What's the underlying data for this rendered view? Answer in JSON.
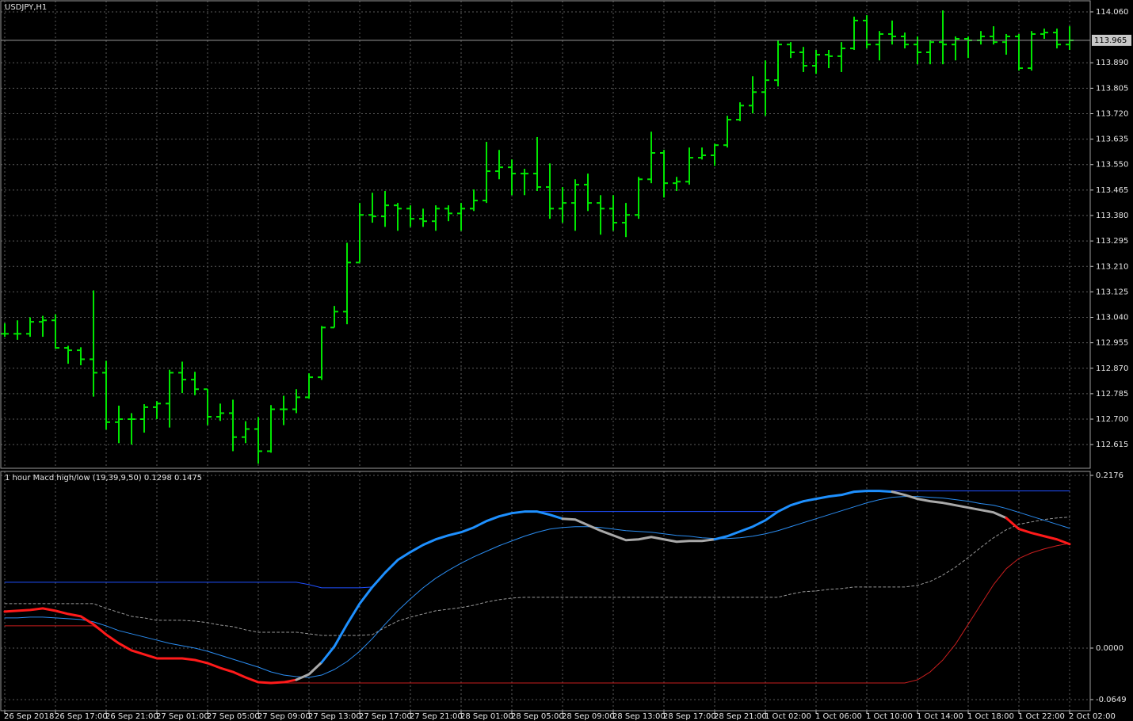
{
  "chart_data": [
    {
      "type": "ohlc",
      "title": "USDJPY,H1",
      "color": "#00e600",
      "grid": true,
      "categories": [
        "26 Sep 2018",
        null,
        null,
        null,
        "26 Sep 17:00",
        null,
        null,
        null,
        "26 Sep 21:00",
        null,
        null,
        null,
        "27 Sep 01:00",
        null,
        null,
        null,
        "27 Sep 05:00",
        null,
        null,
        null,
        "27 Sep 09:00",
        null,
        null,
        null,
        "27 Sep 13:00",
        null,
        null,
        null,
        "27 Sep 17:00",
        null,
        null,
        null,
        "27 Sep 21:00",
        null,
        null,
        null,
        "28 Sep 01:00",
        null,
        null,
        null,
        "28 Sep 05:00",
        null,
        null,
        null,
        "28 Sep 09:00",
        null,
        null,
        null,
        "28 Sep 13:00",
        null,
        null,
        null,
        "28 Sep 17:00",
        null,
        null,
        null,
        "28 Sep 21:00",
        null,
        null,
        null,
        "1 Oct 02:00",
        null,
        null,
        null,
        "1 Oct 06:00",
        null,
        null,
        null,
        "1 Oct 10:00",
        null,
        null,
        null,
        "1 Oct 14:00",
        null,
        null,
        null,
        "1 Oct 18:00",
        null,
        null,
        null,
        "1 Oct 22:00",
        null,
        null,
        null,
        "2 Oct 02:00"
      ],
      "open": [
        112.985,
        112.985,
        112.985,
        113.025,
        113.03,
        112.938,
        112.93,
        112.9,
        112.855,
        112.69,
        112.7,
        112.7,
        112.74,
        112.752,
        112.855,
        112.832,
        112.8,
        112.708,
        112.72,
        112.64,
        112.667,
        112.593,
        112.733,
        112.733,
        112.773,
        112.84,
        113.006,
        113.059,
        113.223,
        113.382,
        113.377,
        113.414,
        113.403,
        113.369,
        113.361,
        113.403,
        113.387,
        113.403,
        113.43,
        113.528,
        113.541,
        113.52,
        113.52,
        113.475,
        113.403,
        113.422,
        113.483,
        113.422,
        113.403,
        113.356,
        113.382,
        113.501,
        113.589,
        113.488,
        113.493,
        113.573,
        113.581,
        113.615,
        113.7,
        113.747,
        113.792,
        113.832,
        113.951,
        113.925,
        113.88,
        113.917,
        113.912,
        113.938,
        114.031,
        113.951,
        113.986,
        113.978,
        113.951,
        113.925,
        113.959,
        113.951,
        113.97,
        113.965,
        113.978,
        113.959,
        113.978,
        113.872,
        113.986,
        113.991,
        113.951
      ],
      "high": [
        113.02,
        113.03,
        113.04,
        113.045,
        113.05,
        112.945,
        112.94,
        113.13,
        112.895,
        112.745,
        112.72,
        112.75,
        112.76,
        112.865,
        112.892,
        112.858,
        112.8,
        112.752,
        112.765,
        112.693,
        112.707,
        112.747,
        112.778,
        112.8,
        112.853,
        113.011,
        113.078,
        113.289,
        113.422,
        113.456,
        113.462,
        113.422,
        113.414,
        113.403,
        113.414,
        113.414,
        113.422,
        113.467,
        113.626,
        113.599,
        113.567,
        113.536,
        113.642,
        113.554,
        113.475,
        113.501,
        113.52,
        113.448,
        113.448,
        113.422,
        113.509,
        113.66,
        113.599,
        113.509,
        113.607,
        113.607,
        113.62,
        113.713,
        113.758,
        113.845,
        113.898,
        113.965,
        113.959,
        113.943,
        113.933,
        113.933,
        113.959,
        114.044,
        114.049,
        113.996,
        114.031,
        113.991,
        113.978,
        113.965,
        114.065,
        113.978,
        113.978,
        113.996,
        114.012,
        113.986,
        113.986,
        113.996,
        114.004,
        114.004,
        114.012
      ],
      "low": [
        112.975,
        112.965,
        112.975,
        112.975,
        112.935,
        112.885,
        112.88,
        112.775,
        112.665,
        112.62,
        112.615,
        112.655,
        112.7,
        112.672,
        112.787,
        112.78,
        112.68,
        112.694,
        112.593,
        112.62,
        112.551,
        112.588,
        112.68,
        112.72,
        112.768,
        112.831,
        113.006,
        113.017,
        113.223,
        113.356,
        113.342,
        113.329,
        113.342,
        113.342,
        113.329,
        113.361,
        113.329,
        113.395,
        113.422,
        113.501,
        113.448,
        113.448,
        113.462,
        113.369,
        113.356,
        113.329,
        113.395,
        113.316,
        113.329,
        113.308,
        113.369,
        113.488,
        113.44,
        113.462,
        113.483,
        113.567,
        113.546,
        113.607,
        113.695,
        113.721,
        113.713,
        113.811,
        113.906,
        113.859,
        113.853,
        113.872,
        113.859,
        113.933,
        113.938,
        113.898,
        113.951,
        113.938,
        113.885,
        113.885,
        113.885,
        113.898,
        113.906,
        113.951,
        113.951,
        113.917,
        113.864,
        113.864,
        113.97,
        113.938,
        113.933
      ],
      "close": [
        112.985,
        112.985,
        113.025,
        113.03,
        112.938,
        112.93,
        112.9,
        112.855,
        112.69,
        112.7,
        112.7,
        112.74,
        112.752,
        112.855,
        112.832,
        112.8,
        112.708,
        112.72,
        112.64,
        112.667,
        112.593,
        112.733,
        112.733,
        112.773,
        112.84,
        113.006,
        113.059,
        113.223,
        113.382,
        113.377,
        113.414,
        113.403,
        113.369,
        113.361,
        113.403,
        113.387,
        113.403,
        113.43,
        113.528,
        113.541,
        113.52,
        113.52,
        113.475,
        113.403,
        113.422,
        113.483,
        113.422,
        113.403,
        113.356,
        113.382,
        113.501,
        113.589,
        113.488,
        113.493,
        113.573,
        113.581,
        113.615,
        113.7,
        113.747,
        113.792,
        113.832,
        113.951,
        113.925,
        113.88,
        113.917,
        113.912,
        113.938,
        114.031,
        113.951,
        113.986,
        113.978,
        113.951,
        113.925,
        113.959,
        113.951,
        113.97,
        113.965,
        113.978,
        113.959,
        113.978,
        113.872,
        113.986,
        113.991,
        113.951,
        113.965
      ],
      "last_price": 113.965,
      "ylim": [
        112.536,
        114.097
      ],
      "yticks": [
        {
          "value": 114.06,
          "label": "114.060"
        },
        {
          "value": 113.89,
          "label": "113.890"
        },
        113.805,
        {
          "value": 113.72,
          "label": "113.720"
        },
        113.635,
        {
          "value": 113.55,
          "label": "113.550"
        },
        113.465,
        {
          "value": 113.38,
          "label": "113.380"
        },
        113.295,
        {
          "value": 113.21,
          "label": "113.210"
        },
        113.125,
        {
          "value": 113.04,
          "label": "113.040"
        },
        112.955,
        {
          "value": 112.87,
          "label": "112.870"
        },
        112.785,
        {
          "value": 112.7,
          "label": "112.700"
        },
        112.615
      ]
    },
    {
      "type": "line",
      "title": "1 hour Macd high/low (19,39,9,50) 0.1298 0.1475",
      "grid": true,
      "ylim": [
        -0.0789,
        0.2226
      ],
      "yticks": [
        0.2176,
        {
          "value": 0,
          "label": "0.0000"
        },
        -0.0649
      ],
      "series": [
        {
          "style": "dashed",
          "color": "#9a9a9a",
          "values": [
            0.056,
            0.056,
            0.056,
            0.056,
            0.056,
            0.056,
            0.056,
            0.056,
            0.05,
            0.045,
            0.04,
            0.038,
            0.035,
            0.035,
            0.035,
            0.034,
            0.032,
            0.029,
            0.027,
            0.023,
            0.02,
            0.02,
            0.02,
            0.02,
            0.018,
            0.016,
            0.016,
            0.016,
            0.016,
            0.017,
            0.026,
            0.034,
            0.039,
            0.043,
            0.047,
            0.049,
            0.051,
            0.054,
            0.058,
            0.061,
            0.063,
            0.064,
            0.064,
            0.064,
            0.064,
            0.064,
            0.064,
            0.064,
            0.064,
            0.064,
            0.064,
            0.064,
            0.064,
            0.064,
            0.064,
            0.064,
            0.064,
            0.064,
            0.064,
            0.064,
            0.064,
            0.064,
            0.068,
            0.071,
            0.072,
            0.074,
            0.075,
            0.077,
            0.077,
            0.077,
            0.077,
            0.077,
            0.079,
            0.084,
            0.092,
            0.102,
            0.114,
            0.127,
            0.139,
            0.149,
            0.156,
            0.159,
            0.162,
            0.164,
            0.165
          ]
        },
        {
          "style": "thin",
          "color": "#1f4fff",
          "values": [
            0.083,
            0.083,
            0.083,
            0.083,
            0.083,
            0.083,
            0.083,
            0.083,
            0.083,
            0.083,
            0.083,
            0.083,
            0.083,
            0.083,
            0.083,
            0.083,
            0.083,
            0.083,
            0.083,
            0.083,
            0.083,
            0.083,
            0.083,
            0.083,
            0.08,
            0.076,
            0.076,
            0.076,
            0.076,
            0.077,
            0.095,
            0.111,
            0.121,
            0.13,
            0.137,
            0.142,
            0.146,
            0.152,
            0.16,
            0.166,
            0.17,
            0.172,
            0.172,
            0.172,
            0.172,
            0.172,
            0.172,
            0.172,
            0.172,
            0.172,
            0.172,
            0.172,
            0.172,
            0.172,
            0.172,
            0.172,
            0.172,
            0.172,
            0.172,
            0.172,
            0.172,
            0.172,
            0.18,
            0.185,
            0.188,
            0.191,
            0.193,
            0.197,
            0.198,
            0.198,
            0.198,
            0.198,
            0.198,
            0.198,
            0.198,
            0.198,
            0.198,
            0.198,
            0.198,
            0.198,
            0.198,
            0.198,
            0.198,
            0.198,
            0.198
          ]
        },
        {
          "style": "thin",
          "color": "#c81e1e",
          "values": [
            0.028,
            0.028,
            0.028,
            0.028,
            0.028,
            0.028,
            0.028,
            0.028,
            0.017,
            0.006,
            -0.003,
            -0.008,
            -0.013,
            -0.013,
            -0.013,
            -0.015,
            -0.019,
            -0.025,
            -0.03,
            -0.037,
            -0.043,
            -0.044,
            -0.044,
            -0.044,
            -0.044,
            -0.044,
            -0.044,
            -0.044,
            -0.044,
            -0.044,
            -0.044,
            -0.044,
            -0.044,
            -0.044,
            -0.044,
            -0.044,
            -0.044,
            -0.044,
            -0.044,
            -0.044,
            -0.044,
            -0.044,
            -0.044,
            -0.044,
            -0.044,
            -0.044,
            -0.044,
            -0.044,
            -0.044,
            -0.044,
            -0.044,
            -0.044,
            -0.044,
            -0.044,
            -0.044,
            -0.044,
            -0.044,
            -0.044,
            -0.044,
            -0.044,
            -0.044,
            -0.044,
            -0.044,
            -0.044,
            -0.044,
            -0.044,
            -0.044,
            -0.044,
            -0.044,
            -0.044,
            -0.044,
            -0.044,
            -0.04,
            -0.03,
            -0.015,
            0.005,
            0.03,
            0.055,
            0.08,
            0.1,
            0.113,
            0.12,
            0.125,
            0.129,
            0.132
          ]
        },
        {
          "style": "thin",
          "color": "#2a8cf0",
          "values": [
            0.038,
            0.038,
            0.039,
            0.039,
            0.038,
            0.037,
            0.036,
            0.033,
            0.028,
            0.022,
            0.018,
            0.014,
            0.01,
            0.006,
            0.003,
            0,
            -0.004,
            -0.009,
            -0.014,
            -0.019,
            -0.024,
            -0.03,
            -0.034,
            -0.036,
            -0.037,
            -0.034,
            -0.027,
            -0.017,
            -0.004,
            0.012,
            0.03,
            0.047,
            0.062,
            0.076,
            0.088,
            0.098,
            0.107,
            0.115,
            0.122,
            0.129,
            0.135,
            0.141,
            0.146,
            0.15,
            0.152,
            0.153,
            0.153,
            0.152,
            0.15,
            0.148,
            0.147,
            0.146,
            0.144,
            0.142,
            0.141,
            0.139,
            0.138,
            0.138,
            0.139,
            0.141,
            0.144,
            0.148,
            0.153,
            0.158,
            0.163,
            0.168,
            0.173,
            0.178,
            0.183,
            0.187,
            0.19,
            0.191,
            0.191,
            0.19,
            0.189,
            0.187,
            0.185,
            0.182,
            0.18,
            0.176,
            0.171,
            0.166,
            0.161,
            0.156,
            0.151
          ]
        },
        {
          "style": "thick",
          "color": "#1e90ff",
          "values": [
            0.046,
            0.047,
            0.048,
            0.05,
            0.047,
            0.043,
            0.04,
            0.03,
            0.017,
            0.006,
            -0.003,
            -0.008,
            -0.013,
            -0.013,
            -0.013,
            -0.015,
            -0.019,
            -0.025,
            -0.03,
            -0.037,
            -0.043,
            -0.044,
            -0.043,
            -0.04,
            -0.033,
            -0.018,
            0.002,
            0.03,
            0.056,
            0.077,
            0.095,
            0.111,
            0.121,
            0.13,
            0.137,
            0.142,
            0.146,
            0.152,
            0.16,
            0.166,
            0.17,
            0.172,
            0.172,
            0.168,
            0.163,
            0.162,
            0.155,
            0.148,
            0.142,
            0.136,
            0.137,
            0.14,
            0.137,
            0.134,
            0.135,
            0.135,
            0.137,
            0.141,
            0.147,
            0.153,
            0.161,
            0.172,
            0.18,
            0.185,
            0.188,
            0.191,
            0.193,
            0.197,
            0.198,
            0.198,
            0.197,
            0.193,
            0.188,
            0.185,
            0.183,
            0.18,
            0.177,
            0.174,
            0.171,
            0.164,
            0.15,
            0.145,
            0.141,
            0.137,
            0.131
          ],
          "colors": [
            "#ff1a1a",
            "#ff1a1a",
            "#ff1a1a",
            "#ff1a1a",
            "#ff1a1a",
            "#ff1a1a",
            "#ff1a1a",
            "#ff1a1a",
            "#ff1a1a",
            "#ff1a1a",
            "#ff1a1a",
            "#ff1a1a",
            "#ff1a1a",
            "#ff1a1a",
            "#ff1a1a",
            "#ff1a1a",
            "#ff1a1a",
            "#ff1a1a",
            "#ff1a1a",
            "#ff1a1a",
            "#ff1a1a",
            "#ff1a1a",
            "#ff1a1a",
            "#ff1a1a",
            "#a9a9a9",
            "#a9a9a9",
            "#1e90ff",
            "#1e90ff",
            "#1e90ff",
            "#1e90ff",
            "#1e90ff",
            "#1e90ff",
            "#1e90ff",
            "#1e90ff",
            "#1e90ff",
            "#1e90ff",
            "#1e90ff",
            "#1e90ff",
            "#1e90ff",
            "#1e90ff",
            "#1e90ff",
            "#1e90ff",
            "#1e90ff",
            "#1e90ff",
            "#1e90ff",
            "#a9a9a9",
            "#a9a9a9",
            "#a9a9a9",
            "#a9a9a9",
            "#a9a9a9",
            "#a9a9a9",
            "#a9a9a9",
            "#a9a9a9",
            "#a9a9a9",
            "#a9a9a9",
            "#a9a9a9",
            "#a9a9a9",
            "#1e90ff",
            "#1e90ff",
            "#1e90ff",
            "#1e90ff",
            "#1e90ff",
            "#1e90ff",
            "#1e90ff",
            "#1e90ff",
            "#1e90ff",
            "#1e90ff",
            "#1e90ff",
            "#1e90ff",
            "#1e90ff",
            "#1e90ff",
            "#a9a9a9",
            "#a9a9a9",
            "#a9a9a9",
            "#a9a9a9",
            "#a9a9a9",
            "#a9a9a9",
            "#a9a9a9",
            "#a9a9a9",
            "#a9a9a9",
            "#ff1a1a",
            "#ff1a1a",
            "#ff1a1a",
            "#ff1a1a",
            "#ff1a1a"
          ]
        }
      ]
    }
  ]
}
